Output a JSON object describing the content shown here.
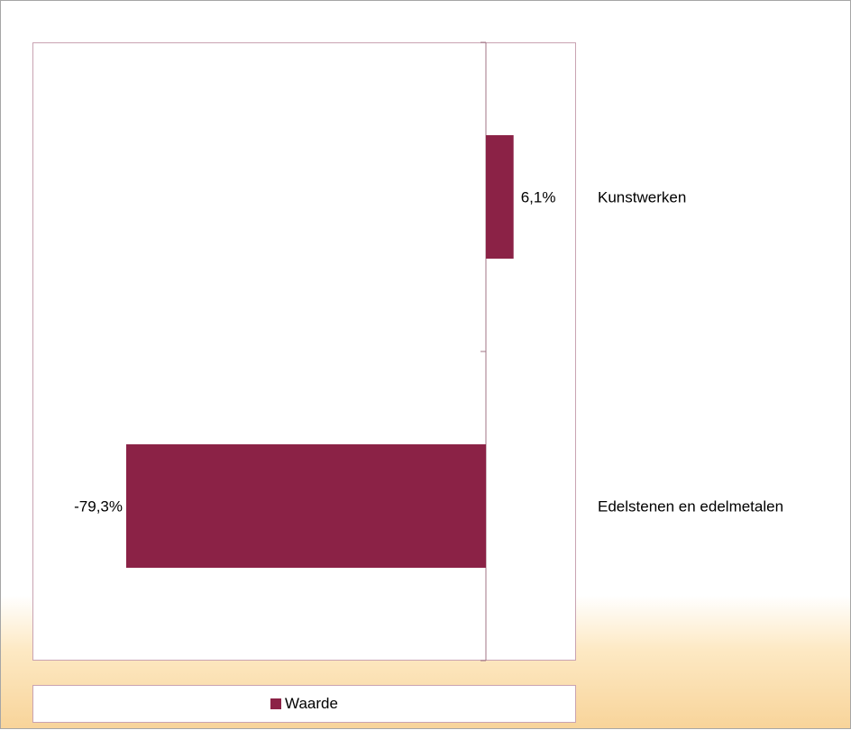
{
  "chart_data": {
    "type": "bar",
    "orientation": "horizontal",
    "categories": [
      "Kunstwerken",
      "Edelstenen en edelmetalen"
    ],
    "series": [
      {
        "name": "Waarde",
        "values": [
          6.1,
          -79.3
        ],
        "data_labels": [
          "6,1%",
          "-79,3%"
        ],
        "color": "#8b2246"
      }
    ],
    "xlim": [
      -100,
      20
    ],
    "grid": false,
    "legend": "bottom",
    "title": "",
    "xlabel": "",
    "ylabel": ""
  },
  "legend": {
    "label": "Waarde"
  },
  "colors": {
    "bar": "#8b2246",
    "frame": "#c9a3b2",
    "axis": "#a07486"
  }
}
